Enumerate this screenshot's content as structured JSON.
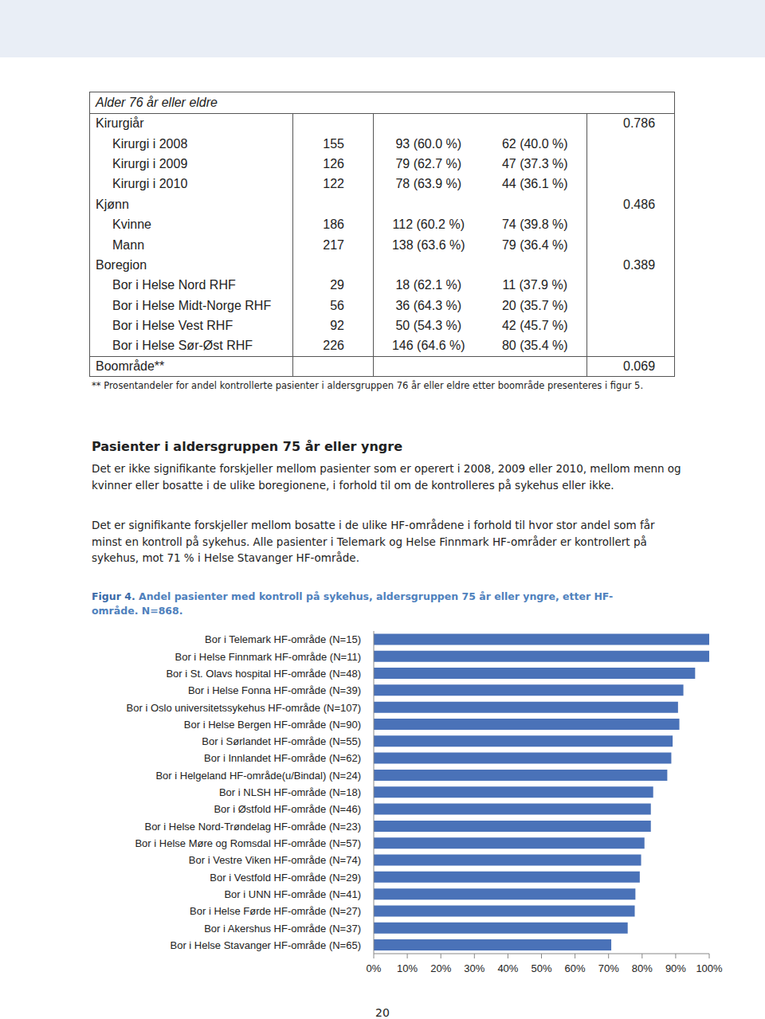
{
  "table": {
    "header": "Alder 76 år eller eldre",
    "groups": [
      {
        "label": "Kirurgiår",
        "p": "0.786",
        "rows": [
          [
            "Kirurgi i 2008",
            "155",
            "93 (60.0 %)",
            "62 (40.0 %)"
          ],
          [
            "Kirurgi i 2009",
            "126",
            "79 (62.7 %)",
            "47 (37.3 %)"
          ],
          [
            "Kirurgi i 2010",
            "122",
            "78 (63.9 %)",
            "44 (36.1 %)"
          ]
        ]
      },
      {
        "label": "Kjønn",
        "p": "0.486",
        "rows": [
          [
            "Kvinne",
            "186",
            "112 (60.2 %)",
            "74 (39.8 %)"
          ],
          [
            "Mann",
            "217",
            "138 (63.6 %)",
            "79 (36.4 %)"
          ]
        ]
      },
      {
        "label": "Boregion",
        "p": "0.389",
        "rows": [
          [
            "Bor i Helse Nord RHF",
            "29",
            "18 (62.1 %)",
            "11 (37.9 %)"
          ],
          [
            "Bor i Helse Midt-Norge RHF",
            "56",
            "36 (64.3 %)",
            "20 (35.7 %)"
          ],
          [
            "Bor i Helse Vest RHF",
            "92",
            "50 (54.3 %)",
            "42 (45.7 %)"
          ],
          [
            "Bor i Helse Sør-Øst RHF",
            "226",
            "146 (64.6 %)",
            "80 (35.4 %)"
          ]
        ]
      },
      {
        "label": "Boområde**",
        "p": "0.069",
        "rows": []
      }
    ]
  },
  "footnote": "** Prosentandeler for andel kontrollerte pasienter i aldersgruppen 76 år eller eldre etter boområde presenteres i figur 5.",
  "heading": "Pasienter i aldersgruppen 75 år eller yngre",
  "paragraphs": [
    "Det er ikke signifikante forskjeller mellom pasienter som er operert i 2008, 2009 eller 2010, mellom menn og kvinner eller bosatte i de ulike boregionene, i forhold til om de kontrolleres på sykehus eller ikke.",
    "Det er signifikante forskjeller mellom bosatte i de ulike HF-områdene i forhold til hvor stor andel som får minst en kontroll på sykehus. Alle pasienter i Telemark og Helse Finnmark HF-områder er kontrollert på sykehus, mot 71 % i Helse Stavanger HF-område."
  ],
  "figure_label": "Figur 4.",
  "figure_title": "Andel pasienter med kontroll på sykehus, aldersgruppen 75 år eller yngre, etter HF-område. N=868.",
  "page_number": "20",
  "chart_data": {
    "type": "bar",
    "orientation": "horizontal",
    "color": "#4a72b8",
    "grid": false,
    "categories": [
      "Bor i Telemark HF-område (N=15)",
      "Bor i Helse Finnmark HF-område (N=11)",
      "Bor i St. Olavs hospital HF-område (N=48)",
      "Bor i Helse Fonna HF-område (N=39)",
      "Bor i Oslo universitetssykehus HF-område (N=107)",
      "Bor i Helse Bergen HF-område (N=90)",
      "Bor i Sørlandet HF-område (N=55)",
      "Bor i Innlandet HF-område (N=62)",
      "Bor i Helgeland HF-område(u/Bindal) (N=24)",
      "Bor i NLSH HF-område (N=18)",
      "Bor i Østfold HF-område (N=46)",
      "Bor i Helse Nord-Trøndelag HF-område (N=23)",
      "Bor i Helse Møre og Romsdal HF-område (N=57)",
      "Bor i Vestre Viken HF-område (N=74)",
      "Bor i Vestfold HF-område (N=29)",
      "Bor i UNN HF-område (N=41)",
      "Bor i Helse Førde HF-område (N=27)",
      "Bor i Akershus HF-område (N=37)",
      "Bor i Helse Stavanger HF-område (N=65)"
    ],
    "values": [
      100,
      100,
      95.8,
      92.3,
      90.7,
      91.1,
      89.1,
      88.7,
      87.5,
      83.3,
      82.6,
      82.6,
      80.7,
      79.7,
      79.3,
      78.0,
      77.8,
      75.7,
      70.8
    ],
    "xlim": [
      0,
      100
    ],
    "xticks": [
      {
        "value": 0,
        "label": "0%"
      },
      {
        "value": 10,
        "label": "10%"
      },
      {
        "value": 20,
        "label": "20%"
      },
      {
        "value": 30,
        "label": "30%"
      },
      {
        "value": 40,
        "label": "40%"
      },
      {
        "value": 50,
        "label": "50%"
      },
      {
        "value": 60,
        "label": "60%"
      },
      {
        "value": 70,
        "label": "70%"
      },
      {
        "value": 80,
        "label": "80%"
      },
      {
        "value": 90,
        "label": "90%"
      },
      {
        "value": 100,
        "label": "100%"
      }
    ]
  }
}
